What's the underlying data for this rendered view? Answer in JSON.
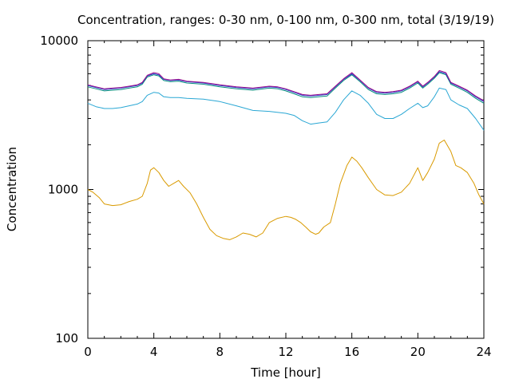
{
  "chart_data": {
    "type": "line",
    "title": "Concentration, ranges: 0-30 nm, 0-100 nm, 0-300 nm, total (3/19/19)",
    "xlabel": "Time [hour]",
    "ylabel": "Concentration",
    "xlim": [
      0,
      24
    ],
    "ylim": [
      100,
      10000
    ],
    "y_scale": "log",
    "grid": false,
    "xticks": [
      0,
      4,
      8,
      12,
      16,
      20,
      24
    ],
    "xtick_labels": [
      "0",
      "4",
      "8",
      "12",
      "16",
      "20",
      "24"
    ],
    "yticks": [
      100,
      1000,
      10000
    ],
    "ytick_labels": [
      "100",
      "1000",
      "10000"
    ],
    "series": [
      {
        "color": "#d99a00",
        "points": [
          [
            0,
            1000
          ],
          [
            0.3,
            960
          ],
          [
            0.7,
            880
          ],
          [
            1,
            800
          ],
          [
            1.5,
            780
          ],
          [
            2,
            790
          ],
          [
            2.5,
            830
          ],
          [
            3,
            860
          ],
          [
            3.3,
            900
          ],
          [
            3.6,
            1100
          ],
          [
            3.8,
            1350
          ],
          [
            4,
            1400
          ],
          [
            4.3,
            1300
          ],
          [
            4.6,
            1150
          ],
          [
            4.9,
            1050
          ],
          [
            5.2,
            1100
          ],
          [
            5.5,
            1150
          ],
          [
            5.8,
            1050
          ],
          [
            6.2,
            950
          ],
          [
            6.6,
            800
          ],
          [
            7,
            650
          ],
          [
            7.4,
            540
          ],
          [
            7.8,
            490
          ],
          [
            8.2,
            470
          ],
          [
            8.6,
            460
          ],
          [
            9,
            480
          ],
          [
            9.4,
            510
          ],
          [
            9.8,
            500
          ],
          [
            10.2,
            480
          ],
          [
            10.6,
            510
          ],
          [
            11,
            600
          ],
          [
            11.5,
            640
          ],
          [
            12,
            660
          ],
          [
            12.3,
            650
          ],
          [
            12.6,
            630
          ],
          [
            12.9,
            600
          ],
          [
            13.2,
            560
          ],
          [
            13.5,
            520
          ],
          [
            13.8,
            500
          ],
          [
            14,
            510
          ],
          [
            14.3,
            560
          ],
          [
            14.7,
            600
          ],
          [
            15,
            800
          ],
          [
            15.3,
            1100
          ],
          [
            15.7,
            1450
          ],
          [
            16,
            1650
          ],
          [
            16.3,
            1550
          ],
          [
            16.6,
            1400
          ],
          [
            17,
            1200
          ],
          [
            17.5,
            1000
          ],
          [
            18,
            920
          ],
          [
            18.5,
            910
          ],
          [
            19,
            960
          ],
          [
            19.5,
            1100
          ],
          [
            20,
            1400
          ],
          [
            20.3,
            1150
          ],
          [
            20.6,
            1300
          ],
          [
            21,
            1600
          ],
          [
            21.3,
            2050
          ],
          [
            21.6,
            2150
          ],
          [
            22,
            1800
          ],
          [
            22.3,
            1450
          ],
          [
            22.6,
            1400
          ],
          [
            23,
            1300
          ],
          [
            23.4,
            1100
          ],
          [
            23.7,
            920
          ],
          [
            24,
            800
          ]
        ]
      },
      {
        "color": "#2aa7d4",
        "points": [
          [
            0,
            3800
          ],
          [
            0.5,
            3600
          ],
          [
            1,
            3500
          ],
          [
            1.5,
            3500
          ],
          [
            2,
            3550
          ],
          [
            2.5,
            3650
          ],
          [
            3,
            3750
          ],
          [
            3.3,
            3900
          ],
          [
            3.6,
            4300
          ],
          [
            4,
            4500
          ],
          [
            4.3,
            4450
          ],
          [
            4.6,
            4200
          ],
          [
            5,
            4150
          ],
          [
            5.5,
            4150
          ],
          [
            6,
            4100
          ],
          [
            7,
            4050
          ],
          [
            8,
            3900
          ],
          [
            9,
            3650
          ],
          [
            10,
            3400
          ],
          [
            11,
            3350
          ],
          [
            12,
            3250
          ],
          [
            12.5,
            3150
          ],
          [
            13,
            2900
          ],
          [
            13.5,
            2750
          ],
          [
            14,
            2800
          ],
          [
            14.5,
            2850
          ],
          [
            15,
            3300
          ],
          [
            15.5,
            4000
          ],
          [
            16,
            4600
          ],
          [
            16.5,
            4300
          ],
          [
            17,
            3800
          ],
          [
            17.5,
            3200
          ],
          [
            18,
            3000
          ],
          [
            18.5,
            3000
          ],
          [
            19,
            3200
          ],
          [
            19.5,
            3500
          ],
          [
            20,
            3800
          ],
          [
            20.3,
            3550
          ],
          [
            20.6,
            3650
          ],
          [
            21,
            4200
          ],
          [
            21.3,
            4800
          ],
          [
            21.7,
            4700
          ],
          [
            22,
            4000
          ],
          [
            22.5,
            3700
          ],
          [
            23,
            3500
          ],
          [
            23.5,
            3000
          ],
          [
            24,
            2500
          ]
        ]
      },
      {
        "color": "#00897b",
        "points": [
          [
            0,
            4900
          ],
          [
            0.5,
            4750
          ],
          [
            1,
            4600
          ],
          [
            1.5,
            4650
          ],
          [
            2,
            4700
          ],
          [
            2.5,
            4800
          ],
          [
            3,
            4900
          ],
          [
            3.3,
            5100
          ],
          [
            3.6,
            5700
          ],
          [
            4,
            5900
          ],
          [
            4.3,
            5800
          ],
          [
            4.6,
            5400
          ],
          [
            5,
            5300
          ],
          [
            5.5,
            5350
          ],
          [
            6,
            5200
          ],
          [
            7,
            5100
          ],
          [
            8,
            4900
          ],
          [
            9,
            4750
          ],
          [
            10,
            4650
          ],
          [
            11,
            4800
          ],
          [
            11.5,
            4750
          ],
          [
            12,
            4600
          ],
          [
            12.5,
            4400
          ],
          [
            13,
            4200
          ],
          [
            13.5,
            4150
          ],
          [
            14,
            4200
          ],
          [
            14.5,
            4250
          ],
          [
            15,
            4800
          ],
          [
            15.5,
            5400
          ],
          [
            16,
            5900
          ],
          [
            16.5,
            5300
          ],
          [
            17,
            4700
          ],
          [
            17.5,
            4400
          ],
          [
            18,
            4350
          ],
          [
            18.5,
            4400
          ],
          [
            19,
            4500
          ],
          [
            19.5,
            4800
          ],
          [
            20,
            5200
          ],
          [
            20.3,
            4800
          ],
          [
            20.6,
            5100
          ],
          [
            21,
            5600
          ],
          [
            21.3,
            6100
          ],
          [
            21.7,
            5900
          ],
          [
            22,
            5100
          ],
          [
            22.5,
            4800
          ],
          [
            23,
            4500
          ],
          [
            23.5,
            4100
          ],
          [
            24,
            3800
          ]
        ]
      },
      {
        "color": "#2b35c9",
        "points": [
          [
            0,
            5000
          ],
          [
            0.5,
            4850
          ],
          [
            1,
            4700
          ],
          [
            1.5,
            4750
          ],
          [
            2,
            4800
          ],
          [
            2.5,
            4900
          ],
          [
            3,
            5000
          ],
          [
            3.3,
            5200
          ],
          [
            3.6,
            5800
          ],
          [
            4,
            6000
          ],
          [
            4.3,
            5900
          ],
          [
            4.6,
            5500
          ],
          [
            5,
            5400
          ],
          [
            5.5,
            5450
          ],
          [
            6,
            5300
          ],
          [
            7,
            5200
          ],
          [
            8,
            5000
          ],
          [
            9,
            4850
          ],
          [
            10,
            4750
          ],
          [
            11,
            4900
          ],
          [
            11.5,
            4850
          ],
          [
            12,
            4700
          ],
          [
            12.5,
            4500
          ],
          [
            13,
            4300
          ],
          [
            13.5,
            4250
          ],
          [
            14,
            4300
          ],
          [
            14.5,
            4350
          ],
          [
            15,
            4900
          ],
          [
            15.5,
            5500
          ],
          [
            16,
            6000
          ],
          [
            16.5,
            5400
          ],
          [
            17,
            4800
          ],
          [
            17.5,
            4500
          ],
          [
            18,
            4450
          ],
          [
            18.5,
            4500
          ],
          [
            19,
            4600
          ],
          [
            19.5,
            4900
          ],
          [
            20,
            5300
          ],
          [
            20.3,
            4900
          ],
          [
            20.6,
            5200
          ],
          [
            21,
            5700
          ],
          [
            21.3,
            6200
          ],
          [
            21.7,
            6000
          ],
          [
            22,
            5200
          ],
          [
            22.5,
            4900
          ],
          [
            23,
            4600
          ],
          [
            23.5,
            4200
          ],
          [
            24,
            3900
          ]
        ]
      },
      {
        "color": "#a0158c",
        "points": [
          [
            0,
            5050
          ],
          [
            0.5,
            4900
          ],
          [
            1,
            4750
          ],
          [
            1.5,
            4800
          ],
          [
            2,
            4850
          ],
          [
            2.5,
            4950
          ],
          [
            3,
            5050
          ],
          [
            3.3,
            5250
          ],
          [
            3.6,
            5850
          ],
          [
            4,
            6100
          ],
          [
            4.3,
            6000
          ],
          [
            4.6,
            5550
          ],
          [
            5,
            5450
          ],
          [
            5.5,
            5500
          ],
          [
            6,
            5350
          ],
          [
            7,
            5250
          ],
          [
            8,
            5050
          ],
          [
            9,
            4900
          ],
          [
            10,
            4800
          ],
          [
            11,
            4950
          ],
          [
            11.5,
            4900
          ],
          [
            12,
            4750
          ],
          [
            12.5,
            4550
          ],
          [
            13,
            4350
          ],
          [
            13.5,
            4300
          ],
          [
            14,
            4350
          ],
          [
            14.5,
            4400
          ],
          [
            15,
            4950
          ],
          [
            15.5,
            5550
          ],
          [
            16,
            6100
          ],
          [
            16.5,
            5450
          ],
          [
            17,
            4850
          ],
          [
            17.5,
            4550
          ],
          [
            18,
            4500
          ],
          [
            18.5,
            4550
          ],
          [
            19,
            4650
          ],
          [
            19.5,
            4950
          ],
          [
            20,
            5350
          ],
          [
            20.3,
            4950
          ],
          [
            20.6,
            5250
          ],
          [
            21,
            5750
          ],
          [
            21.3,
            6300
          ],
          [
            21.7,
            6100
          ],
          [
            22,
            5250
          ],
          [
            22.5,
            4950
          ],
          [
            23,
            4650
          ],
          [
            23.5,
            4250
          ],
          [
            24,
            3950
          ]
        ]
      }
    ]
  }
}
